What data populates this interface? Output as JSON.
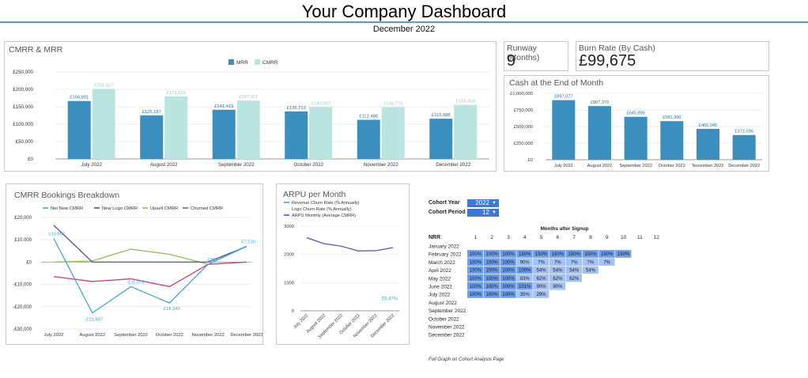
{
  "header": {
    "title": "Your Company Dashboard",
    "subtitle": "December 2022"
  },
  "colors": {
    "blue": "#3a8fbf",
    "light_teal": "#b9e4e0",
    "green": "#8bc34a",
    "purple": "#5c4aa6",
    "pink": "#c2407a",
    "cyan": "#3ea7d8",
    "cohort_dark": "#6d9eeb",
    "cohort_light": "#a4c2f4"
  },
  "kpis": {
    "runway": {
      "label": "Runway (Months)",
      "value": "9"
    },
    "burn": {
      "label": "Burn Rate (By Cash)",
      "value": "£99,675"
    }
  },
  "chart_data": [
    {
      "id": "cmrr_mrr",
      "type": "bar",
      "title": "CMRR & MRR",
      "categories": [
        "July 2022",
        "August 2022",
        "September 2022",
        "October 2022",
        "November 2022",
        "December 2022"
      ],
      "series": [
        {
          "name": "MRR",
          "values": [
            166501,
            125187,
            141419,
            136713,
            112486,
            115588
          ],
          "labels": [
            "£166,501",
            "£125,187",
            "£141,419",
            "£136,713",
            "£112,486",
            "£115,588"
          ]
        },
        {
          "name": "CMRR",
          "values": [
            201427,
            179620,
            167911,
            149297,
            148773,
            155403
          ],
          "labels": [
            "£201,427",
            "£179,620",
            "£167,911",
            "£149,297",
            "£148,773",
            "£155,403"
          ]
        }
      ],
      "ylim": [
        0,
        250000
      ],
      "yticks": [
        0,
        50000,
        100000,
        150000,
        200000,
        250000
      ],
      "ytick_labels": [
        "£0",
        "£50,000",
        "£100,000",
        "£150,000",
        "£200,000",
        "£250,000"
      ],
      "legend": "top-center"
    },
    {
      "id": "cash",
      "type": "bar",
      "title": "Cash at the End of Month",
      "categories": [
        "July 2022",
        "August 2022",
        "September 2022",
        "October 2022",
        "November 2022",
        "December 2022"
      ],
      "values": [
        897077,
        807370,
        645896,
        581306,
        465045,
        372036
      ],
      "labels": [
        "£897,077",
        "£807,370",
        "£645,896",
        "£581,306",
        "£465,045",
        "£372,036"
      ],
      "ylim": [
        0,
        1000000
      ],
      "yticks": [
        0,
        250000,
        500000,
        750000,
        1000000
      ],
      "ytick_labels": [
        "£0",
        "£250,000",
        "£500,000",
        "£750,000",
        "£1,000,000"
      ]
    },
    {
      "id": "cmrr_breakdown",
      "type": "line",
      "title": "CMRR Bookings Breakdown",
      "categories": [
        "July 2022",
        "August 2022",
        "September 2022",
        "October 2022",
        "November 2022",
        "December 2022"
      ],
      "series": [
        {
          "name": "Net New CMRR",
          "values": [
            10607,
            -22807,
            -11009,
            -18343,
            -995,
            7130
          ]
        },
        {
          "name": "New Logo CMRR",
          "values": [
            16500,
            0,
            0,
            0,
            0,
            7000
          ]
        },
        {
          "name": "Upsell CMRR",
          "values": [
            0,
            500,
            5800,
            3500,
            -1000,
            7000
          ]
        },
        {
          "name": "Churned CMRR",
          "values": [
            -6500,
            -8700,
            -7500,
            -11000,
            -1000,
            0
          ]
        }
      ],
      "point_labels": [
        {
          "series": 0,
          "index": 0,
          "text": "£10,607"
        },
        {
          "series": 0,
          "index": 1,
          "text": "-£22,807"
        },
        {
          "series": 0,
          "index": 2,
          "text": "-£11,009"
        },
        {
          "series": 0,
          "index": 3,
          "text": "-£18,343"
        },
        {
          "series": 0,
          "index": 4,
          "text": "-£995"
        },
        {
          "series": 0,
          "index": 5,
          "text": "£7,130"
        }
      ],
      "ylim": [
        -30000,
        20000
      ],
      "yticks": [
        -30000,
        -20000,
        -10000,
        0,
        10000,
        20000
      ],
      "ytick_labels": [
        "-£30,000",
        "-£20,000",
        "-£10,000",
        "£0",
        "£10,000",
        "£20,000"
      ],
      "legend": "top-center"
    },
    {
      "id": "arpu",
      "type": "line",
      "title": "ARPU per Month",
      "categories": [
        "July 2022",
        "August 2022",
        "September 2022",
        "October 2022",
        "November 2022",
        "December 2022"
      ],
      "series": [
        {
          "name": "Revenue Churn Rate (% Annually)",
          "values": [
            null,
            null,
            null,
            null,
            null,
            null
          ]
        },
        {
          "name": "Logo Churn Rate (% Annually)",
          "values": [
            null,
            null,
            null,
            null,
            null,
            null
          ]
        },
        {
          "name": "ARPU Monthly (Average CMRR)",
          "values": [
            2590,
            2380,
            2290,
            2120,
            2130,
            2240
          ]
        }
      ],
      "annotation": "55.47%",
      "ylim": [
        0,
        3000
      ],
      "yticks": [
        0,
        1000,
        2000,
        3000
      ],
      "ytick_labels": [
        "0",
        "1000",
        "2000",
        "3000"
      ],
      "legend": "top-left"
    },
    {
      "id": "cohort",
      "type": "table",
      "controls": {
        "year_label": "Cohort Year",
        "year_value": "2022",
        "period_label": "Cohort Period",
        "period_value": "12"
      },
      "header": "Months after Signup",
      "corner": "NRR",
      "columns": [
        "1",
        "2",
        "3",
        "4",
        "5",
        "6",
        "7",
        "8",
        "9",
        "10",
        "11",
        "12"
      ],
      "rows": [
        {
          "label": "January 2022",
          "cells": []
        },
        {
          "label": "February 2022",
          "cells": [
            "100%",
            "100%",
            "100%",
            "150%",
            "150%",
            "150%",
            "150%",
            "150%",
            "150%",
            "150%"
          ]
        },
        {
          "label": "March 2022",
          "cells": [
            "100%",
            "100%",
            "100%",
            "90%",
            "7%",
            "7%",
            "7%",
            "7%",
            "7%"
          ]
        },
        {
          "label": "April 2022",
          "cells": [
            "100%",
            "100%",
            "100%",
            "100%",
            "54%",
            "54%",
            "54%",
            "54%"
          ]
        },
        {
          "label": "May 2022",
          "cells": [
            "100%",
            "100%",
            "100%",
            "83%",
            "62%",
            "62%",
            "62%"
          ]
        },
        {
          "label": "June 2022",
          "cells": [
            "100%",
            "100%",
            "100%",
            "101%",
            "90%",
            "90%"
          ]
        },
        {
          "label": "July 2022",
          "cells": [
            "100%",
            "100%",
            "100%",
            "35%",
            "29%"
          ]
        },
        {
          "label": "August 2022",
          "cells": []
        },
        {
          "label": "September 2022",
          "cells": []
        },
        {
          "label": "October 2022",
          "cells": []
        },
        {
          "label": "November 2022",
          "cells": []
        },
        {
          "label": "December 2022",
          "cells": []
        }
      ],
      "note": "Full Graph on Cohort Analysis Page"
    }
  ]
}
